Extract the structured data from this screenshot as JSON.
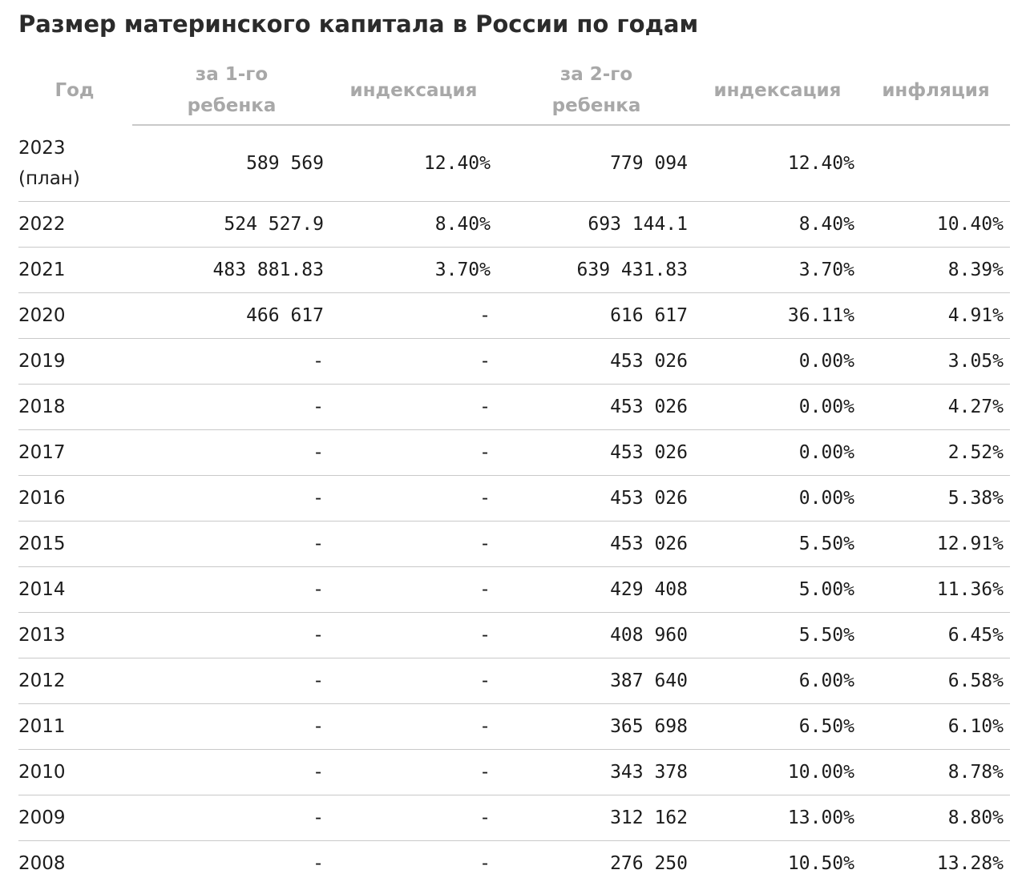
{
  "title": "Размер материнского капитала в России по годам",
  "table": {
    "headers": [
      "Год",
      "за 1-го ребенка",
      "индексация",
      "за 2-го ребенка",
      "индексация",
      "инфляция"
    ],
    "rows": [
      {
        "year": "2023 (план)",
        "first_child": "589 569",
        "index1": "12.40%",
        "second_child": "779 094",
        "index2": "12.40%",
        "inflation": ""
      },
      {
        "year": "2022",
        "first_child": "524 527.9",
        "index1": "8.40%",
        "second_child": "693 144.1",
        "index2": "8.40%",
        "inflation": "10.40%"
      },
      {
        "year": "2021",
        "first_child": "483 881.83",
        "index1": "3.70%",
        "second_child": "639 431.83",
        "index2": "3.70%",
        "inflation": "8.39%"
      },
      {
        "year": "2020",
        "first_child": "466 617",
        "index1": "-",
        "second_child": "616 617",
        "index2": "36.11%",
        "inflation": "4.91%"
      },
      {
        "year": "2019",
        "first_child": "-",
        "index1": "-",
        "second_child": "453 026",
        "index2": "0.00%",
        "inflation": "3.05%"
      },
      {
        "year": "2018",
        "first_child": "-",
        "index1": "-",
        "second_child": "453 026",
        "index2": "0.00%",
        "inflation": "4.27%"
      },
      {
        "year": "2017",
        "first_child": "-",
        "index1": "-",
        "second_child": "453 026",
        "index2": "0.00%",
        "inflation": "2.52%"
      },
      {
        "year": "2016",
        "first_child": "-",
        "index1": "-",
        "second_child": "453 026",
        "index2": "0.00%",
        "inflation": "5.38%"
      },
      {
        "year": "2015",
        "first_child": "-",
        "index1": "-",
        "second_child": "453 026",
        "index2": "5.50%",
        "inflation": "12.91%"
      },
      {
        "year": "2014",
        "first_child": "-",
        "index1": "-",
        "second_child": "429 408",
        "index2": "5.00%",
        "inflation": "11.36%"
      },
      {
        "year": "2013",
        "first_child": "-",
        "index1": "-",
        "second_child": "408 960",
        "index2": "5.50%",
        "inflation": "6.45%"
      },
      {
        "year": "2012",
        "first_child": "-",
        "index1": "-",
        "second_child": "387 640",
        "index2": "6.00%",
        "inflation": "6.58%"
      },
      {
        "year": "2011",
        "first_child": "-",
        "index1": "-",
        "second_child": "365 698",
        "index2": "6.50%",
        "inflation": "6.10%"
      },
      {
        "year": "2010",
        "first_child": "-",
        "index1": "-",
        "second_child": "343 378",
        "index2": "10.00%",
        "inflation": "8.78%"
      },
      {
        "year": "2009",
        "first_child": "-",
        "index1": "-",
        "second_child": "312 162",
        "index2": "13.00%",
        "inflation": "8.80%"
      },
      {
        "year": "2008",
        "first_child": "-",
        "index1": "-",
        "second_child": "276 250",
        "index2": "10.50%",
        "inflation": "13.28%"
      }
    ]
  }
}
